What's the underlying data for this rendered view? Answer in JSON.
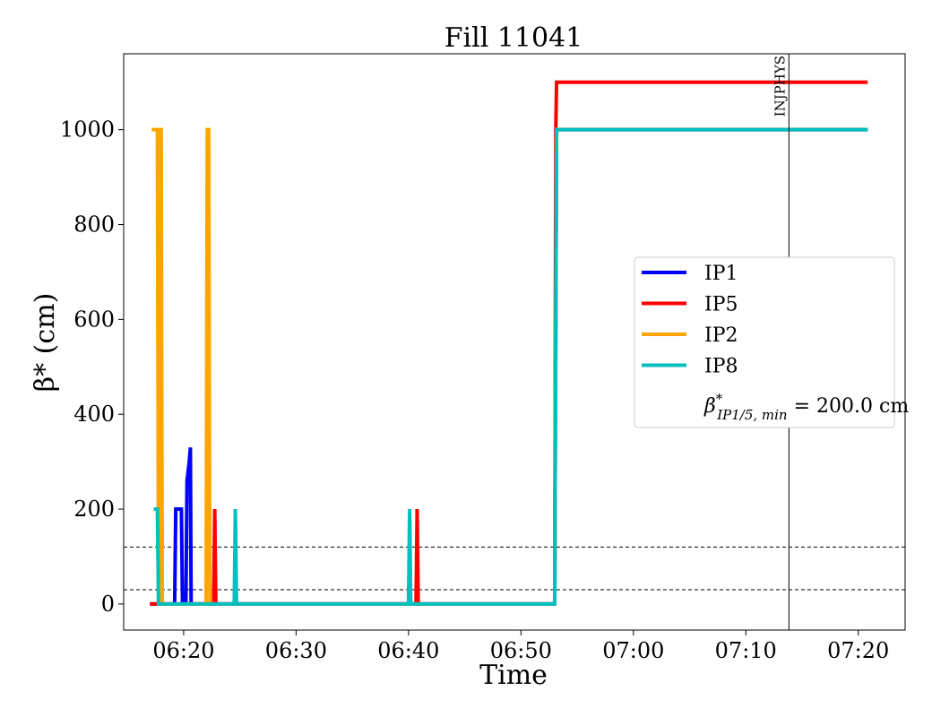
{
  "chart_data": {
    "type": "line",
    "title": "Fill 11041",
    "xlabel": "Time",
    "ylabel": "β* (cm)",
    "xlim_minutes": [
      "06:14:40",
      "07:24:10"
    ],
    "ylim": [
      -55,
      1160
    ],
    "x_ticks": [
      "06:20",
      "06:30",
      "06:40",
      "06:50",
      "07:00",
      "07:10",
      "07:20"
    ],
    "y_ticks": [
      0,
      200,
      400,
      600,
      800,
      1000
    ],
    "hlines": [
      {
        "y": 30,
        "style": "dashed",
        "color": "#000000"
      },
      {
        "y": 120,
        "style": "dashed",
        "color": "#000000"
      }
    ],
    "vline": {
      "x": "07:13:50",
      "label": "INJPHYS",
      "color": "#000000"
    },
    "legend_position": "center-right",
    "legend": [
      {
        "label": "IP1",
        "color": "#0000ff",
        "kind": "line"
      },
      {
        "label": "IP5",
        "color": "#ff0000",
        "kind": "line"
      },
      {
        "label": "IP2",
        "color": "#ffa500",
        "kind": "line"
      },
      {
        "label": "IP8",
        "color": "#00bfbf",
        "kind": "line"
      },
      {
        "label": "β*IP1/5, min = 200.0 cm",
        "label_main": "β",
        "label_sup": "*",
        "label_sub": "IP1/5, min",
        "label_rest": " = 200.0 cm",
        "kind": "text"
      }
    ],
    "series": [
      {
        "name": "IP1",
        "color": "#0000ff",
        "points": [
          [
            "06:17:00",
            0
          ],
          [
            "06:19:12",
            0
          ],
          [
            "06:19:18",
            200
          ],
          [
            "06:19:48",
            200
          ],
          [
            "06:19:54",
            0
          ],
          [
            "06:20:12",
            0
          ],
          [
            "06:20:18",
            260
          ],
          [
            "06:20:30",
            300
          ],
          [
            "06:20:36",
            330
          ],
          [
            "06:20:40",
            0
          ],
          [
            "06:53:00",
            0
          ],
          [
            "06:53:10",
            1000
          ],
          [
            "07:20:50",
            1000
          ]
        ]
      },
      {
        "name": "IP5",
        "color": "#ff0000",
        "points": [
          [
            "06:17:00",
            0
          ],
          [
            "06:22:40",
            0
          ],
          [
            "06:22:46",
            200
          ],
          [
            "06:22:52",
            0
          ],
          [
            "06:40:40",
            0
          ],
          [
            "06:40:46",
            200
          ],
          [
            "06:40:52",
            0
          ],
          [
            "06:53:00",
            0
          ],
          [
            "06:53:06",
            1000
          ],
          [
            "06:53:10",
            1100
          ],
          [
            "07:20:50",
            1100
          ]
        ]
      },
      {
        "name": "IP2",
        "color": "#ffa500",
        "points": [
          [
            "06:17:10",
            1000
          ],
          [
            "06:17:40",
            1000
          ],
          [
            "06:17:46",
            0
          ],
          [
            "06:17:52",
            1000
          ],
          [
            "06:18:00",
            1000
          ],
          [
            "06:18:06",
            0
          ],
          [
            "06:22:00",
            0
          ],
          [
            "06:22:06",
            1000
          ],
          [
            "06:22:14",
            1000
          ],
          [
            "06:22:20",
            0
          ],
          [
            "06:53:00",
            0
          ],
          [
            "06:53:10",
            1000
          ],
          [
            "07:20:50",
            1000
          ]
        ]
      },
      {
        "name": "IP8",
        "color": "#00bfbf",
        "points": [
          [
            "06:17:20",
            200
          ],
          [
            "06:17:40",
            200
          ],
          [
            "06:17:46",
            0
          ],
          [
            "06:24:30",
            0
          ],
          [
            "06:24:36",
            200
          ],
          [
            "06:24:42",
            0
          ],
          [
            "06:40:00",
            0
          ],
          [
            "06:40:06",
            200
          ],
          [
            "06:40:12",
            0
          ],
          [
            "06:53:00",
            0
          ],
          [
            "06:53:10",
            1000
          ],
          [
            "07:20:50",
            1000
          ]
        ]
      }
    ]
  }
}
